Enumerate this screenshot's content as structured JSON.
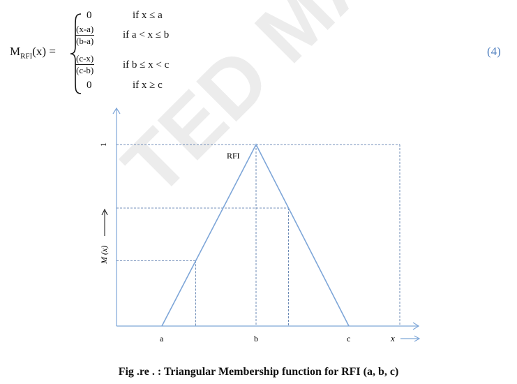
{
  "equation": {
    "lhs_main": "M",
    "lhs_sub": "RFI",
    "lhs_arg": "(x) =",
    "cases": [
      {
        "value": "0",
        "condition": "if x ≤ a"
      },
      {
        "num": "(x-a)",
        "den": "(b-a)",
        "condition": "if a < x ≤ b"
      },
      {
        "num": "(c-x)",
        "den": "(c-b)",
        "condition": "if b ≤ x < c"
      },
      {
        "value": "0",
        "condition": "if x ≥ c"
      }
    ],
    "number": "(4)"
  },
  "chart_data": {
    "type": "line",
    "title": "",
    "xlabel": "x",
    "ylabel": "M (x)",
    "x_ticks": [
      "a",
      "b",
      "c"
    ],
    "y_ticks": [
      "1"
    ],
    "series": [
      {
        "name": "RFI",
        "points": [
          [
            "a",
            0
          ],
          [
            "b",
            1
          ],
          [
            "c",
            0
          ]
        ]
      }
    ],
    "peak_label": "RFI",
    "line_color": "#7ea6d8",
    "guide_color": "#4a6fa5",
    "guide_levels": [
      0.65,
      0.36
    ]
  },
  "caption": "Fig .re . : Triangular Membership function for RFI (a, b, c)",
  "watermark": "TED MANUSC"
}
